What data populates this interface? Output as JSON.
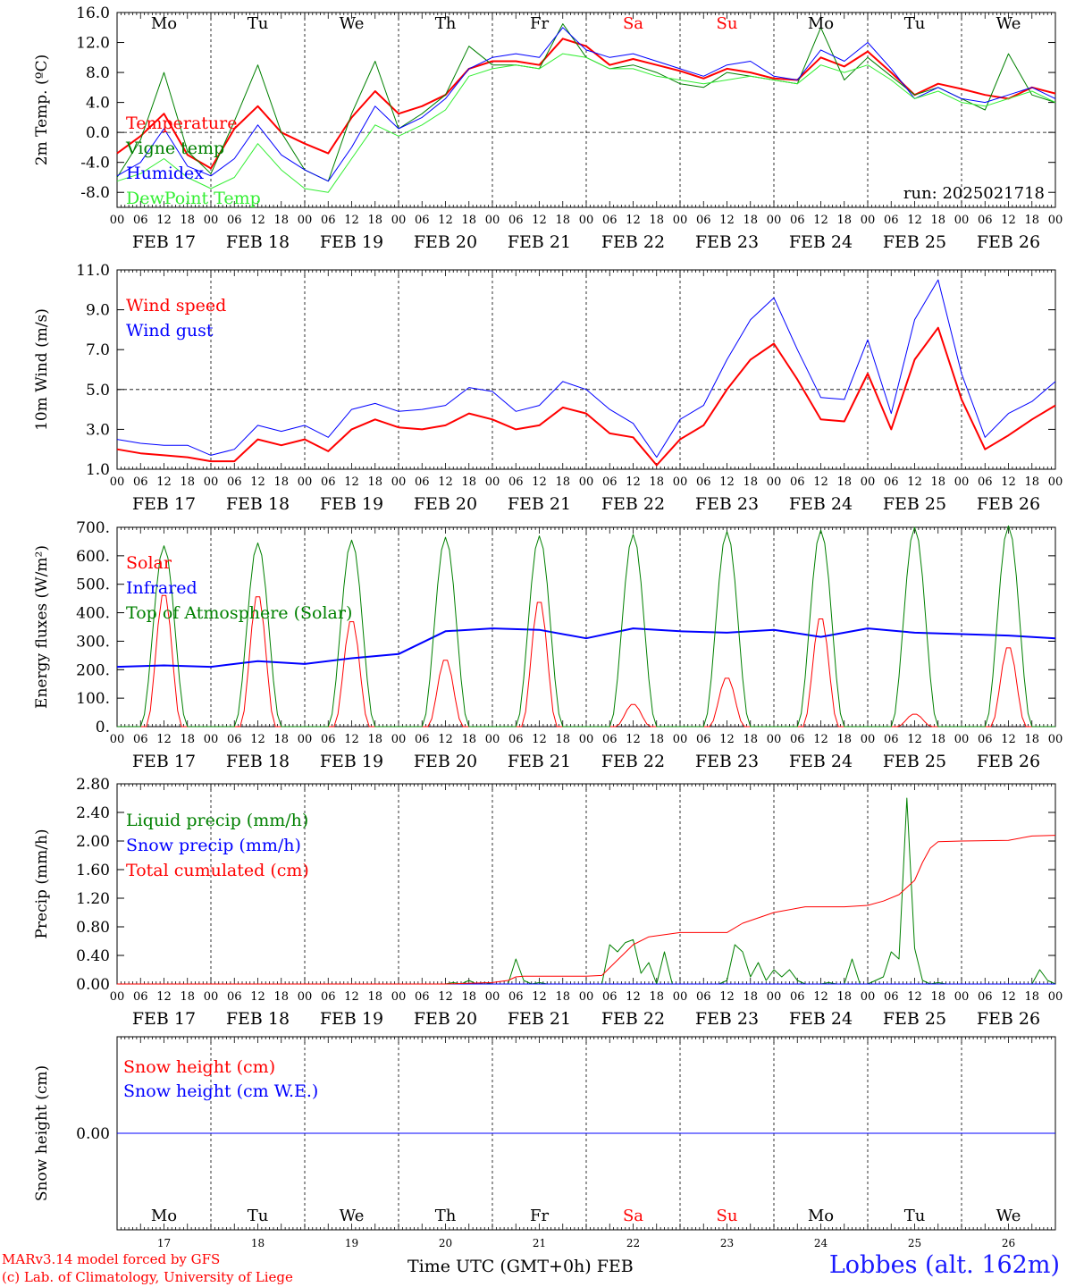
{
  "chart_data": [
    {
      "type": "line",
      "ylabel": "2m Temp. (ºC)",
      "ylim": [
        -10,
        16
      ],
      "yticks": [
        "16.0",
        "12.0",
        "8.0",
        "4.0",
        "0.0",
        "-4.0",
        "-8.0"
      ],
      "ytick_values": [
        16,
        12,
        8,
        4,
        0,
        -4,
        -8
      ],
      "ref_line": 0,
      "annotation": "run: 2025021718",
      "weekday_labels": [
        "Mo",
        "Tu",
        "We",
        "Th",
        "Fr",
        "Sa",
        "Su",
        "Mo",
        "Tu",
        "We"
      ],
      "weekday_colors": [
        "#000000",
        "#000000",
        "#000000",
        "#000000",
        "#000000",
        "#ff0000",
        "#ff0000",
        "#000000",
        "#000000",
        "#000000"
      ],
      "series": [
        {
          "name": "Temperature",
          "color": "#ff0000",
          "width": 2,
          "x": [
            0,
            6,
            12,
            18,
            24,
            30,
            36,
            42,
            48,
            54,
            60,
            66,
            72,
            78,
            84,
            90,
            96,
            102,
            108,
            114,
            120,
            126,
            132,
            138,
            144,
            150,
            156,
            162,
            168,
            174,
            180,
            186,
            192,
            198,
            204,
            210,
            216,
            222,
            228,
            234,
            240
          ],
          "y": [
            -2.8,
            -0.5,
            2.5,
            -3.0,
            -4.8,
            0.5,
            3.5,
            0.0,
            -1.5,
            -2.8,
            2.0,
            5.5,
            2.5,
            3.5,
            5.0,
            8.5,
            9.5,
            9.5,
            9.0,
            12.5,
            11.5,
            9.0,
            9.8,
            9.0,
            8.2,
            7.2,
            8.5,
            8.0,
            7.2,
            7.0,
            10.0,
            8.8,
            10.8,
            8.0,
            5.0,
            6.5,
            5.8,
            5.0,
            4.5,
            6.0,
            5.2
          ]
        },
        {
          "name": "Vigne temp",
          "color": "#008000",
          "width": 1,
          "x": [
            0,
            6,
            12,
            18,
            24,
            30,
            36,
            42,
            48,
            54,
            60,
            66,
            72,
            78,
            84,
            90,
            96,
            102,
            108,
            114,
            120,
            126,
            132,
            138,
            144,
            150,
            156,
            162,
            168,
            174,
            180,
            186,
            192,
            198,
            204,
            210,
            216,
            222,
            228,
            234,
            240
          ],
          "y": [
            -6.0,
            -1.0,
            8.0,
            -2.5,
            -5.5,
            1.5,
            9.0,
            0.0,
            -5.0,
            -6.5,
            2.5,
            9.5,
            0.5,
            2.5,
            5.0,
            11.5,
            9.0,
            9.0,
            8.5,
            14.5,
            10.0,
            8.5,
            9.0,
            8.0,
            6.5,
            6.0,
            8.0,
            7.5,
            7.0,
            6.5,
            14.0,
            7.0,
            10.0,
            7.5,
            5.0,
            6.0,
            4.5,
            3.0,
            10.5,
            5.0,
            4.0
          ]
        },
        {
          "name": "Humidex",
          "color": "#0000ff",
          "width": 1,
          "x": [
            0,
            6,
            12,
            18,
            24,
            30,
            36,
            42,
            48,
            54,
            60,
            66,
            72,
            78,
            84,
            90,
            96,
            102,
            108,
            114,
            120,
            126,
            132,
            138,
            144,
            150,
            156,
            162,
            168,
            174,
            180,
            186,
            192,
            198,
            204,
            210,
            216,
            222,
            228,
            234,
            240
          ],
          "y": [
            -5.8,
            -4.0,
            0.5,
            -4.5,
            -5.8,
            -3.5,
            1.0,
            -3.0,
            -5.0,
            -6.5,
            -2.0,
            3.5,
            0.5,
            2.0,
            4.5,
            8.5,
            10.0,
            10.5,
            10.0,
            14.0,
            11.0,
            10.0,
            10.5,
            9.5,
            8.5,
            7.5,
            9.0,
            9.5,
            7.5,
            7.0,
            11.0,
            9.5,
            12.0,
            8.5,
            4.5,
            6.0,
            4.5,
            4.0,
            5.0,
            6.0,
            4.5
          ]
        },
        {
          "name": "DewPoint Temp",
          "color": "#33ee33",
          "width": 1,
          "x": [
            0,
            6,
            12,
            18,
            24,
            30,
            36,
            42,
            48,
            54,
            60,
            66,
            72,
            78,
            84,
            90,
            96,
            102,
            108,
            114,
            120,
            126,
            132,
            138,
            144,
            150,
            156,
            162,
            168,
            174,
            180,
            186,
            192,
            198,
            204,
            210,
            216,
            222,
            228,
            234,
            240
          ],
          "y": [
            -6.5,
            -5.5,
            -3.5,
            -6.0,
            -7.5,
            -6.0,
            -1.5,
            -5.0,
            -7.5,
            -8.0,
            -3.5,
            1.0,
            -0.5,
            1.0,
            3.0,
            7.5,
            8.5,
            9.0,
            8.5,
            10.5,
            10.0,
            8.5,
            8.5,
            7.5,
            7.0,
            6.5,
            7.0,
            7.5,
            7.0,
            6.5,
            9.0,
            8.0,
            9.0,
            7.0,
            4.5,
            5.5,
            4.0,
            3.5,
            4.5,
            5.5,
            4.0
          ]
        }
      ]
    },
    {
      "type": "line",
      "ylabel": "10m Wind (m/s)",
      "ylim": [
        1.0,
        11.0
      ],
      "yticks": [
        "11.0",
        "9.0",
        "7.0",
        "5.0",
        "3.0",
        "1.0"
      ],
      "ytick_values": [
        11,
        9,
        7,
        5,
        3,
        1
      ],
      "ref_line": 5.0,
      "series": [
        {
          "name": "Wind speed",
          "color": "#ff0000",
          "width": 2,
          "x": [
            0,
            6,
            12,
            18,
            24,
            30,
            36,
            42,
            48,
            54,
            60,
            66,
            72,
            78,
            84,
            90,
            96,
            102,
            108,
            114,
            120,
            126,
            132,
            138,
            144,
            150,
            156,
            162,
            168,
            174,
            180,
            186,
            192,
            198,
            204,
            210,
            216,
            222,
            228,
            234,
            240
          ],
          "y": [
            2.0,
            1.8,
            1.7,
            1.6,
            1.4,
            1.4,
            2.5,
            2.2,
            2.5,
            1.9,
            3.0,
            3.5,
            3.1,
            3.0,
            3.2,
            3.8,
            3.5,
            3.0,
            3.2,
            4.1,
            3.8,
            2.8,
            2.6,
            1.2,
            2.5,
            3.2,
            5.0,
            6.5,
            7.3,
            5.5,
            3.5,
            3.4,
            5.8,
            3.0,
            6.5,
            8.1,
            4.5,
            2.0,
            2.7,
            3.5,
            4.2
          ]
        },
        {
          "name": "Wind gust",
          "color": "#0000ff",
          "width": 1,
          "x": [
            0,
            6,
            12,
            18,
            24,
            30,
            36,
            42,
            48,
            54,
            60,
            66,
            72,
            78,
            84,
            90,
            96,
            102,
            108,
            114,
            120,
            126,
            132,
            138,
            144,
            150,
            156,
            162,
            168,
            174,
            180,
            186,
            192,
            198,
            204,
            210,
            216,
            222,
            228,
            234,
            240
          ],
          "y": [
            2.5,
            2.3,
            2.2,
            2.2,
            1.7,
            2.0,
            3.2,
            2.9,
            3.2,
            2.6,
            4.0,
            4.3,
            3.9,
            4.0,
            4.2,
            5.1,
            4.9,
            3.9,
            4.2,
            5.4,
            5.0,
            4.0,
            3.3,
            1.6,
            3.5,
            4.2,
            6.5,
            8.5,
            9.6,
            7.0,
            4.6,
            4.5,
            7.5,
            3.8,
            8.5,
            10.5,
            5.8,
            2.6,
            3.8,
            4.4,
            5.4
          ]
        }
      ]
    },
    {
      "type": "line",
      "ylabel": "Energy fluxes (W/m²)",
      "ylim": [
        0,
        700
      ],
      "yticks": [
        "700.",
        "600.",
        "500.",
        "400.",
        "300.",
        "200.",
        "100.",
        "0."
      ],
      "ytick_values": [
        700,
        600,
        500,
        400,
        300,
        200,
        100,
        0
      ],
      "series": [
        {
          "name": "Solar",
          "color": "#ff0000",
          "width": 1,
          "peak_hours": [
            12,
            36,
            60,
            84,
            108,
            132,
            156,
            180,
            204,
            228
          ],
          "peak_values": [
            475,
            470,
            380,
            240,
            450,
            80,
            175,
            390,
            45,
            285
          ]
        },
        {
          "name": "Infrared",
          "color": "#0000ff",
          "width": 2,
          "x": [
            0,
            12,
            24,
            36,
            48,
            60,
            72,
            84,
            96,
            108,
            120,
            132,
            144,
            156,
            168,
            180,
            192,
            204,
            216,
            228,
            240
          ],
          "y": [
            210,
            215,
            210,
            230,
            220,
            240,
            255,
            335,
            345,
            340,
            310,
            345,
            335,
            330,
            340,
            315,
            345,
            330,
            325,
            320,
            310
          ]
        },
        {
          "name": "Top of Atmosphere (Solar)",
          "color": "#008000",
          "width": 1,
          "peak_hours": [
            12,
            36,
            60,
            84,
            108,
            132,
            156,
            180,
            204,
            228
          ],
          "peak_values": [
            635,
            645,
            655,
            665,
            670,
            675,
            685,
            690,
            700,
            705
          ]
        }
      ]
    },
    {
      "type": "line",
      "ylabel": "Precip (mm/h)",
      "ylim": [
        0,
        2.8
      ],
      "yticks": [
        "2.80",
        "2.40",
        "2.00",
        "1.60",
        "1.20",
        "0.80",
        "0.40",
        "0.00"
      ],
      "ytick_values": [
        2.8,
        2.4,
        2.0,
        1.6,
        1.2,
        0.8,
        0.4,
        0.0
      ],
      "series": [
        {
          "name": "Liquid precip (mm/h)",
          "color": "#008000",
          "width": 1,
          "x": [
            0,
            84,
            86,
            88,
            90,
            92,
            94,
            96,
            98,
            100,
            102,
            104,
            106,
            108,
            110,
            112,
            114,
            116,
            118,
            120,
            122,
            124,
            126,
            128,
            130,
            132,
            134,
            136,
            138,
            140,
            142,
            144,
            146,
            148,
            150,
            152,
            154,
            156,
            158,
            160,
            162,
            164,
            166,
            168,
            170,
            172,
            174,
            176,
            178,
            180,
            182,
            184,
            186,
            188,
            190,
            192,
            194,
            196,
            198,
            200,
            202,
            204,
            206,
            208,
            210,
            212,
            214,
            216,
            218,
            220,
            222,
            224,
            226,
            228,
            230,
            232,
            234,
            236,
            238,
            240
          ],
          "y": [
            0,
            0,
            0.02,
            0,
            0.05,
            0,
            0.02,
            0,
            0,
            0,
            0.35,
            0.05,
            0,
            0.02,
            0,
            0,
            0,
            0,
            0,
            0,
            0,
            0,
            0.55,
            0.45,
            0.58,
            0.62,
            0.15,
            0.3,
            0,
            0.45,
            0,
            0,
            0,
            0,
            0,
            0,
            0,
            0.05,
            0.55,
            0.45,
            0.1,
            0.3,
            0.05,
            0.2,
            0.1,
            0.2,
            0.05,
            0,
            0,
            0,
            0.02,
            0,
            0,
            0.35,
            0,
            0,
            0.05,
            0.1,
            0.45,
            0.35,
            2.6,
            0.5,
            0.05,
            0,
            0.02,
            0,
            0,
            0,
            0,
            0,
            0,
            0,
            0,
            0,
            0,
            0,
            0,
            0.2,
            0.05,
            0
          ]
        },
        {
          "name": "Snow precip (mm/h)",
          "color": "#0000ff",
          "width": 1,
          "x": [
            0,
            240
          ],
          "y": [
            0,
            0
          ]
        },
        {
          "name": "Total cumulated (cm)",
          "color": "#ff0000",
          "width": 1,
          "x": [
            0,
            84,
            96,
            100,
            102,
            104,
            112,
            120,
            124,
            132,
            136,
            144,
            148,
            156,
            160,
            168,
            176,
            186,
            192,
            196,
            200,
            204,
            206,
            208,
            210,
            216,
            228,
            234,
            240
          ],
          "y": [
            0,
            0,
            0.02,
            0.05,
            0.1,
            0.11,
            0.11,
            0.11,
            0.12,
            0.55,
            0.66,
            0.72,
            0.72,
            0.72,
            0.85,
            1.0,
            1.08,
            1.08,
            1.1,
            1.16,
            1.25,
            1.45,
            1.7,
            1.9,
            1.99,
            2.0,
            2.01,
            2.07,
            2.08
          ]
        }
      ]
    },
    {
      "type": "line",
      "ylabel": "Snow height (cm)",
      "ylim": [
        -1,
        1
      ],
      "yticks": [
        "0.00"
      ],
      "ytick_values": [
        0
      ],
      "series": [
        {
          "name": "Snow height (cm)",
          "color": "#ff0000",
          "width": 1,
          "x": [
            0,
            240
          ],
          "y": [
            0,
            0
          ]
        },
        {
          "name": "Snow height (cm W.E.)",
          "color": "#0000ff",
          "width": 1,
          "x": [
            0,
            240
          ],
          "y": [
            0,
            0
          ]
        }
      ]
    }
  ],
  "x_axis": {
    "hour_ticks": [
      "00",
      "06",
      "12",
      "18"
    ],
    "final_tick": "00",
    "date_labels": [
      "FEB 17",
      "FEB 18",
      "FEB 19",
      "FEB 20",
      "FEB 21",
      "FEB 22",
      "FEB 23",
      "FEB 24",
      "FEB 25",
      "FEB 26"
    ],
    "bottom_weekdays": [
      "Mo",
      "Tu",
      "We",
      "Th",
      "Fr",
      "Sa",
      "Su",
      "Mo",
      "Tu",
      "We"
    ],
    "bottom_days": [
      "17",
      "18",
      "19",
      "20",
      "21",
      "22",
      "23",
      "24",
      "25",
      "26"
    ],
    "bottom_weekday_colors": [
      "#000000",
      "#000000",
      "#000000",
      "#000000",
      "#000000",
      "#ff0000",
      "#ff0000",
      "#000000",
      "#000000",
      "#000000"
    ]
  },
  "footer": {
    "credit_line1": "MARv3.14 model forced by GFS",
    "credit_line2": "(c) Lab. of Climatology, University of Liege",
    "xaxis_title": "Time UTC (GMT+0h) FEB",
    "station": "Lobbes (alt. 162m)"
  }
}
